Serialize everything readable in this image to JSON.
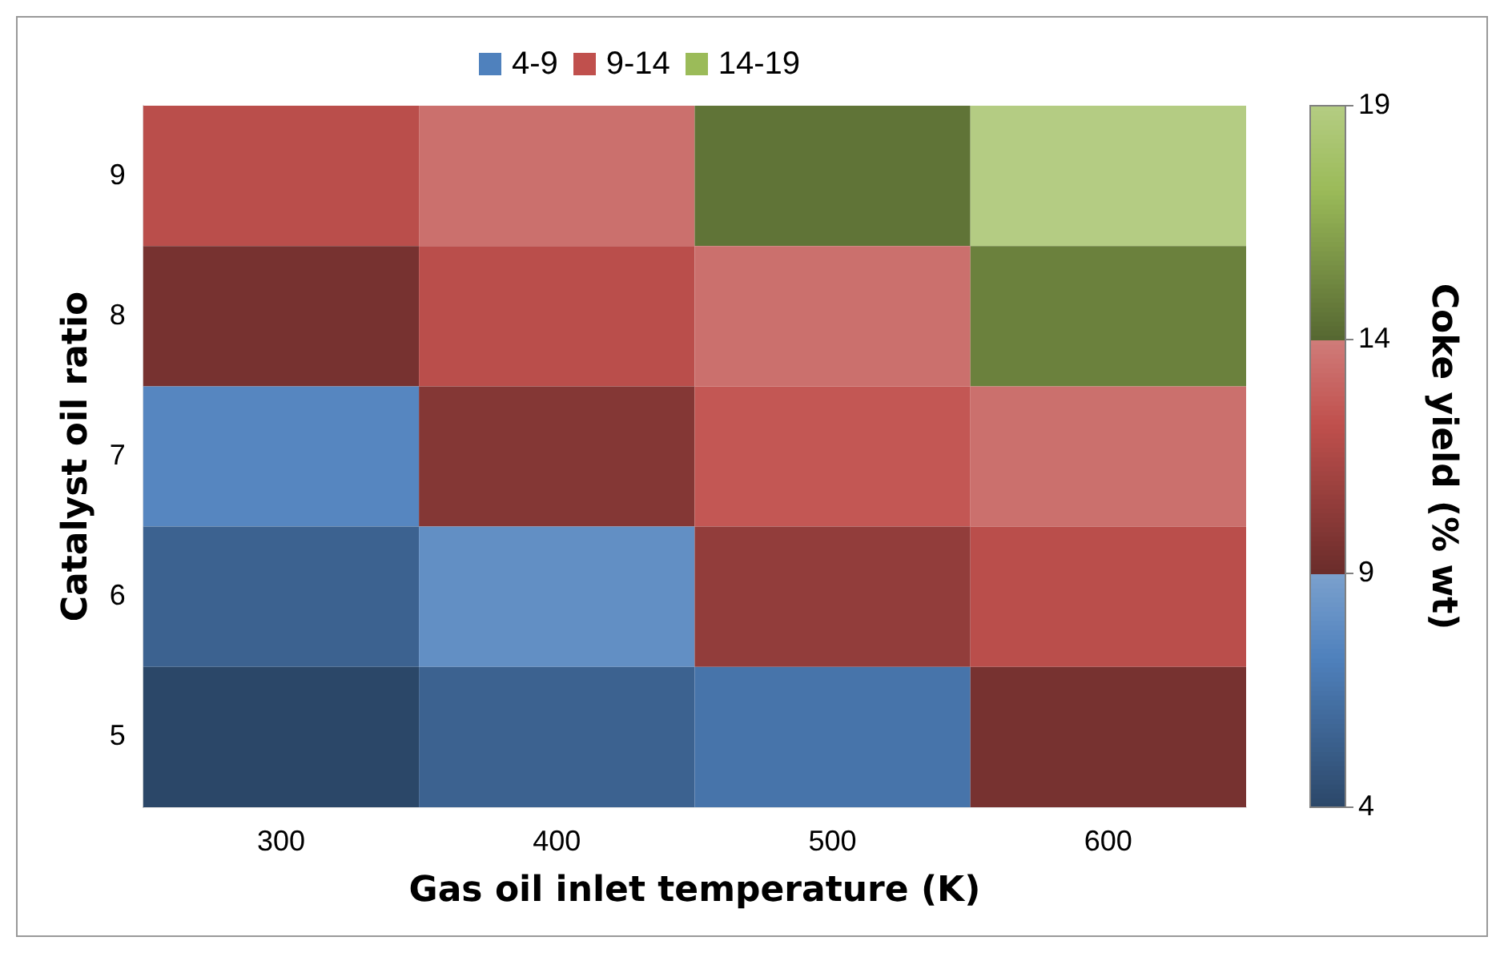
{
  "chart_data": {
    "type": "heatmap",
    "xlabel": "Gas oil inlet temperature (K)",
    "ylabel": "Catalyst oil ratio",
    "clabel": "Coke yield (% wt)",
    "categories": [
      "300",
      "400",
      "500",
      "600"
    ],
    "y_categories": [
      "9",
      "8",
      "7",
      "6",
      "5"
    ],
    "cells": [
      [
        12,
        13.5,
        14.5,
        19
      ],
      [
        9.5,
        12,
        13.5,
        15
      ],
      [
        7.5,
        10,
        12.5,
        13.5
      ],
      [
        5.5,
        8,
        10.5,
        12
      ],
      [
        4,
        5.5,
        6.5,
        9.5
      ]
    ],
    "clim": [
      4,
      19
    ],
    "cticks": [
      4,
      9,
      14,
      19
    ],
    "colors": [
      "#4f81bd",
      "#c0504d",
      "#9bbb59"
    ],
    "annotations": [
      "4-9",
      "9-14",
      "14-19"
    ]
  }
}
